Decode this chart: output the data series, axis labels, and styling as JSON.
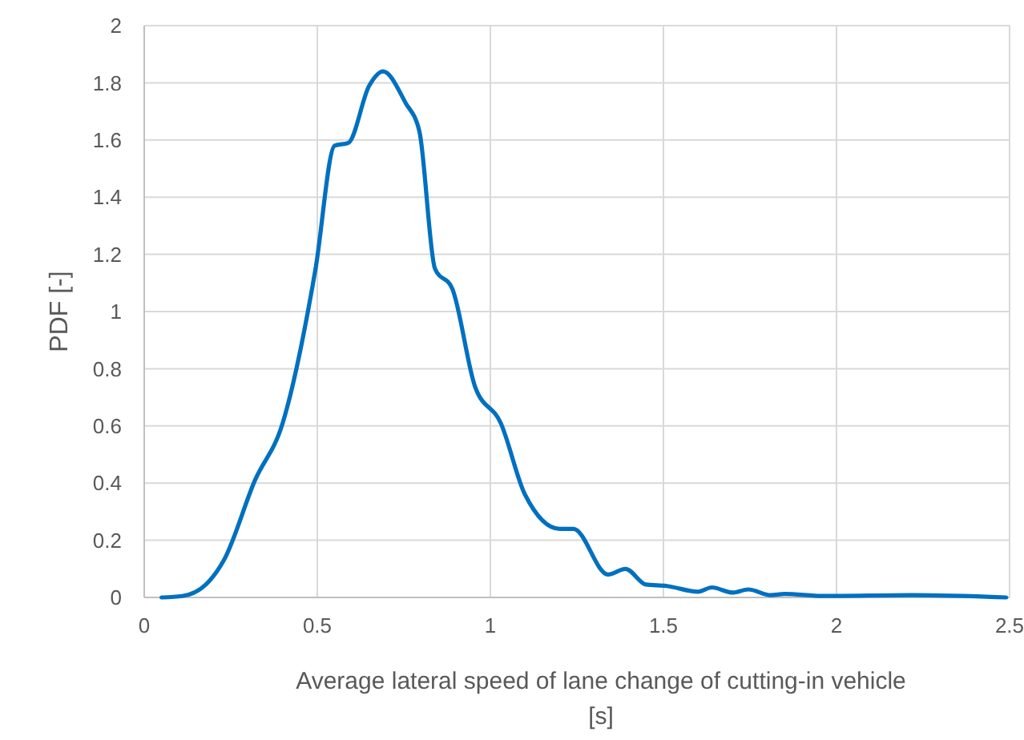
{
  "chart_data": {
    "type": "line",
    "xlabel": "Average lateral speed of lane change of cutting-in vehicle [s]",
    "ylabel": "PDF [-]",
    "series": [
      {
        "color": "#0070c0",
        "x": [
          0.05,
          0.11,
          0.19,
          0.23,
          0.32,
          0.4,
          0.495,
          0.55,
          0.59,
          0.65,
          0.69,
          0.755,
          0.795,
          0.84,
          0.89,
          0.955,
          1.03,
          1.1,
          1.2,
          1.24,
          1.34,
          1.39,
          1.45,
          1.51,
          1.6,
          1.64,
          1.7,
          1.745,
          1.81,
          1.85,
          1.96,
          2.22,
          2.49
        ],
        "values": [
          0,
          0.005,
          0.06,
          0.13,
          0.41,
          0.61,
          1.15,
          1.58,
          1.59,
          1.79,
          1.84,
          1.73,
          1.63,
          1.15,
          1.08,
          0.74,
          0.61,
          0.36,
          0.24,
          0.24,
          0.08,
          0.1,
          0.045,
          0.04,
          0.02,
          0.035,
          0.017,
          0.028,
          0.008,
          0.012,
          0.005,
          0.008,
          0
        ]
      }
    ],
    "xlim": [
      0,
      2.5
    ],
    "xticks": [
      0,
      0.5,
      1,
      1.5,
      2,
      2.5
    ],
    "ylim": [
      0,
      2
    ],
    "yticks": [
      0,
      0.2,
      0.4,
      0.6,
      0.8,
      1,
      1.2,
      1.4,
      1.6,
      1.8,
      2
    ],
    "grid": true,
    "marker": "none",
    "line_style": "solid"
  }
}
